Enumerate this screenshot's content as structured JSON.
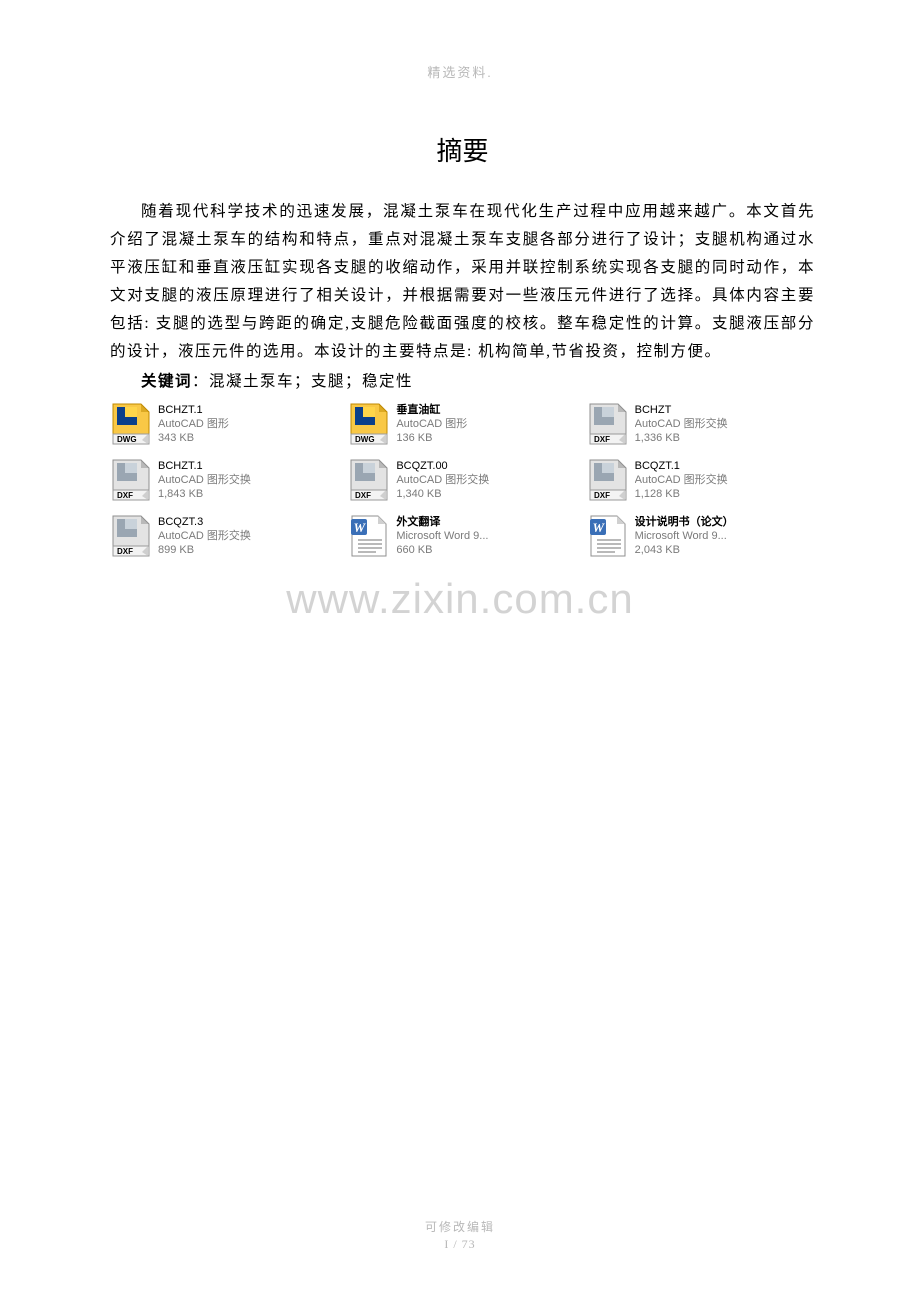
{
  "header": {
    "text": "精选资料."
  },
  "title": "摘要",
  "paragraph": "随着现代科学技术的迅速发展，混凝土泵车在现代化生产过程中应用越来越广。本文首先介绍了混凝土泵车的结构和特点，重点对混凝土泵车支腿各部分进行了设计；支腿机构通过水平液压缸和垂直液压缸实现各支腿的收缩动作，采用并联控制系统实现各支腿的同时动作，本文对支腿的液压原理进行了相关设计，并根据需要对一些液压元件进行了选择。具体内容主要包括: 支腿的选型与跨距的确定,支腿危险截面强度的校核。整车稳定性的计算。支腿液压部分的设计，液压元件的选用。本设计的主要特点是: 机构简单,节省投资，控制方便。",
  "keywords": {
    "label": "关键词",
    "value": "：混凝土泵车；支腿；稳定性"
  },
  "files": [
    {
      "name": "BCHZT.1",
      "bold": false,
      "type": "AutoCAD 图形",
      "size": "343 KB",
      "icon": "dwg"
    },
    {
      "name": "垂直油缸",
      "bold": true,
      "type": "AutoCAD 图形",
      "size": "136 KB",
      "icon": "dwg"
    },
    {
      "name": "BCHZT",
      "bold": false,
      "type": "AutoCAD 图形交换",
      "size": "1,336 KB",
      "icon": "dxf"
    },
    {
      "name": "BCHZT.1",
      "bold": false,
      "type": "AutoCAD 图形交换",
      "size": "1,843 KB",
      "icon": "dxf"
    },
    {
      "name": "BCQZT.00",
      "bold": false,
      "type": "AutoCAD 图形交换",
      "size": "1,340 KB",
      "icon": "dxf"
    },
    {
      "name": "BCQZT.1",
      "bold": false,
      "type": "AutoCAD 图形交换",
      "size": "1,128 KB",
      "icon": "dxf"
    },
    {
      "name": "BCQZT.3",
      "bold": false,
      "type": "AutoCAD 图形交换",
      "size": "899 KB",
      "icon": "dxf"
    },
    {
      "name": "外文翻译",
      "bold": true,
      "type": "Microsoft Word 9...",
      "size": "660 KB",
      "icon": "doc"
    },
    {
      "name": "设计说明书（论文）",
      "bold": true,
      "type": "Microsoft Word 9...",
      "size": "2,043 KB",
      "icon": "doc"
    }
  ],
  "watermark": "www.zixin.com.cn",
  "footer": {
    "line1": "可修改编辑",
    "line2": "I / 73"
  },
  "icons": {
    "dwg": {
      "page_fill": "#f9c846",
      "page_stroke": "#c08a00",
      "band_fill": "#f3f3f3",
      "band_stroke": "#9a9a9a",
      "label_color": "#000",
      "label": "DWG",
      "shape_fill": "#0b3f8a",
      "shape_accent": "#ffd54a"
    },
    "dxf": {
      "page_fill": "#e3e3e3",
      "page_stroke": "#8f8f8f",
      "band_fill": "#f3f3f3",
      "band_stroke": "#9a9a9a",
      "label_color": "#000",
      "label": "DXF",
      "shape_fill": "#9aa6b2",
      "shape_accent": "#c9d2da"
    },
    "doc": {
      "page_fill": "#ffffff",
      "page_stroke": "#8f8f8f",
      "badge_fill": "#3a6fb7",
      "badge_text": "#ffffff",
      "lines_color": "#8f8f8f"
    }
  }
}
